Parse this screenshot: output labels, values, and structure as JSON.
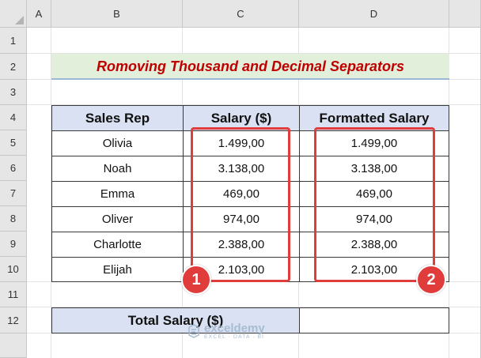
{
  "columns": [
    "A",
    "B",
    "C",
    "D"
  ],
  "rows": [
    "1",
    "2",
    "3",
    "4",
    "5",
    "6",
    "7",
    "8",
    "9",
    "10",
    "11",
    "12"
  ],
  "title": "Romoving Thousand and Decimal Separators",
  "table": {
    "headers": [
      "Sales Rep",
      "Salary ($)",
      "Formatted Salary"
    ],
    "rows": [
      {
        "rep": "Olivia",
        "salary": "1.499,00",
        "formatted": "1.499,00"
      },
      {
        "rep": "Noah",
        "salary": "3.138,00",
        "formatted": "3.138,00"
      },
      {
        "rep": "Emma",
        "salary": "469,00",
        "formatted": "469,00"
      },
      {
        "rep": "Oliver",
        "salary": "974,00",
        "formatted": "974,00"
      },
      {
        "rep": "Charlotte",
        "salary": "2.388,00",
        "formatted": "2.388,00"
      },
      {
        "rep": "Elijah",
        "salary": "2.103,00",
        "formatted": "2.103,00"
      }
    ]
  },
  "total": {
    "label": "Total Salary ($)",
    "value": ""
  },
  "badges": [
    "1",
    "2"
  ],
  "watermark": {
    "name": "exceldemy",
    "sub": "EXCEL · DATA · BI"
  },
  "colors": {
    "title": "#c00000",
    "title_bg": "#e2efda",
    "header_bg": "#d9e1f2",
    "highlight": "#e03c3c"
  }
}
